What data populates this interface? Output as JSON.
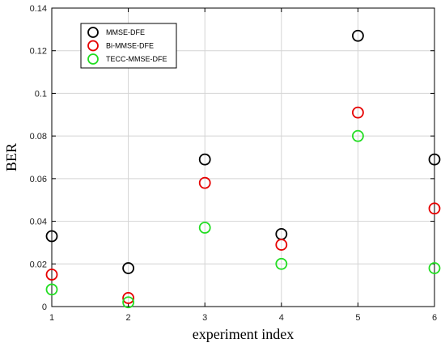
{
  "chart_data": {
    "type": "scatter",
    "title": "",
    "xlabel": "experiment index",
    "ylabel": "BER",
    "xlim": [
      1,
      6
    ],
    "ylim": [
      0,
      0.14
    ],
    "x_ticks": [
      1,
      2,
      3,
      4,
      5,
      6
    ],
    "x_tick_labels": [
      "1",
      "2",
      "3",
      "4",
      "5",
      "6"
    ],
    "y_ticks": [
      0,
      0.02,
      0.04,
      0.06,
      0.08,
      0.1,
      0.12,
      0.14
    ],
    "y_tick_labels": [
      "0",
      "0.02",
      "0.04",
      "0.06",
      "0.08",
      "0.1",
      "0.12",
      "0.14"
    ],
    "grid": true,
    "legend_position": "top-left",
    "marker": "open-circle",
    "x": [
      1,
      2,
      3,
      4,
      5,
      6
    ],
    "series": [
      {
        "name": "MMSE-DFE",
        "color": "#000000",
        "values": [
          0.033,
          0.018,
          0.069,
          0.034,
          0.127,
          0.069
        ]
      },
      {
        "name": "Bi-MMSE-DFE",
        "color": "#e60000",
        "values": [
          0.015,
          0.004,
          0.058,
          0.029,
          0.091,
          0.046
        ]
      },
      {
        "name": "TECC-MMSE-DFE",
        "color": "#22dd22",
        "values": [
          0.008,
          0.002,
          0.037,
          0.02,
          0.08,
          0.018
        ]
      }
    ]
  }
}
